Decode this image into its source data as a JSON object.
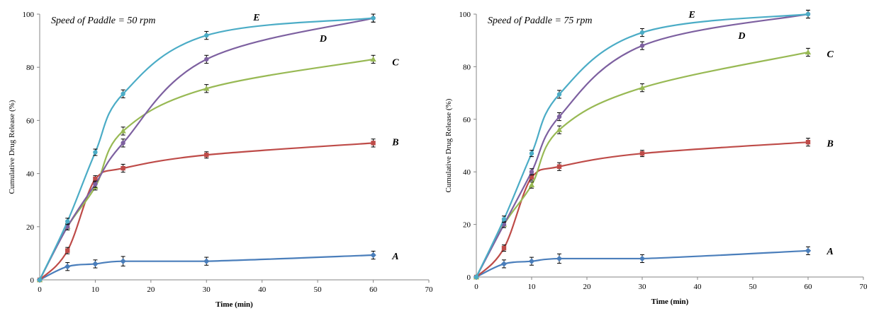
{
  "charts": [
    {
      "type": "line",
      "annotation": "Speed of Paddle = 50 rpm",
      "xlabel": "Time (min)",
      "ylabel": "Cumulative Drug Release (%)",
      "xlim": [
        0,
        70
      ],
      "ylim": [
        0,
        100
      ],
      "xticks": [
        0,
        10,
        20,
        30,
        40,
        50,
        60,
        70
      ],
      "yticks": [
        0,
        20,
        40,
        60,
        80,
        100
      ],
      "series": [
        {
          "label": "A",
          "color": "#4a7ebb",
          "marker": "diamond",
          "x": [
            0,
            5,
            10,
            15,
            30,
            60
          ],
          "y": [
            0,
            5,
            6,
            7,
            7,
            9.3
          ],
          "err": [
            0,
            1.5,
            1.5,
            1.8,
            1.5,
            1.5
          ],
          "label_at": [
            64,
            9
          ]
        },
        {
          "label": "B",
          "color": "#be4b48",
          "marker": "square",
          "x": [
            0,
            5,
            10,
            15,
            30,
            60
          ],
          "y": [
            0,
            11,
            38,
            42,
            47,
            51.5
          ],
          "err": [
            0,
            1.2,
            1.2,
            1.5,
            1.2,
            1.5
          ],
          "label_at": [
            64,
            52
          ]
        },
        {
          "label": "C",
          "color": "#98b954",
          "marker": "triangle",
          "x": [
            0,
            5,
            10,
            15,
            30,
            60
          ],
          "y": [
            0,
            20,
            35,
            56,
            72,
            83
          ],
          "err": [
            0,
            1.2,
            1.2,
            1.5,
            1.5,
            1.5
          ],
          "label_at": [
            64,
            82
          ]
        },
        {
          "label": "D",
          "color": "#7d60a0",
          "marker": "x",
          "x": [
            0,
            5,
            10,
            15,
            30,
            60
          ],
          "y": [
            0,
            20,
            36,
            51.5,
            83,
            98.5
          ],
          "err": [
            0,
            1.2,
            1.2,
            1.5,
            1.5,
            1.5
          ],
          "label_at": [
            51,
            91
          ]
        },
        {
          "label": "E",
          "color": "#4bacc6",
          "marker": "star",
          "x": [
            0,
            5,
            10,
            15,
            30,
            60
          ],
          "y": [
            0,
            22,
            48,
            70,
            92,
            98.5
          ],
          "err": [
            0,
            1.2,
            1.2,
            1.5,
            1.5,
            1.5
          ],
          "label_at": [
            39,
            99
          ]
        }
      ]
    },
    {
      "type": "line",
      "annotation": "Speed of Paddle = 75 rpm",
      "xlabel": "Time (min)",
      "ylabel": "Cumulative Drug Release (%)",
      "xlim": [
        0,
        70
      ],
      "ylim": [
        0,
        100
      ],
      "xticks": [
        0,
        10,
        20,
        30,
        40,
        50,
        60,
        70
      ],
      "yticks": [
        0,
        20,
        40,
        60,
        80,
        100
      ],
      "series": [
        {
          "label": "A",
          "color": "#4a7ebb",
          "marker": "diamond",
          "x": [
            0,
            5,
            10,
            15,
            30,
            60
          ],
          "y": [
            0,
            5,
            6,
            7,
            7,
            10
          ],
          "err": [
            0,
            1.5,
            1.5,
            1.8,
            1.5,
            1.5
          ],
          "label_at": [
            64,
            10
          ]
        },
        {
          "label": "B",
          "color": "#be4b48",
          "marker": "square",
          "x": [
            0,
            5,
            10,
            15,
            30,
            60
          ],
          "y": [
            0,
            11,
            38,
            42,
            47,
            51.3
          ],
          "err": [
            0,
            1.2,
            1.2,
            1.5,
            1.2,
            1.5
          ],
          "label_at": [
            64,
            51
          ]
        },
        {
          "label": "C",
          "color": "#98b954",
          "marker": "triangle",
          "x": [
            0,
            5,
            10,
            15,
            30,
            60
          ],
          "y": [
            0,
            20,
            35,
            56,
            72,
            85.5
          ],
          "err": [
            0,
            1.2,
            1.2,
            1.5,
            1.5,
            1.5
          ],
          "label_at": [
            64,
            85
          ]
        },
        {
          "label": "D",
          "color": "#7d60a0",
          "marker": "x",
          "x": [
            0,
            5,
            10,
            15,
            30,
            60
          ],
          "y": [
            0,
            20,
            40,
            61,
            88,
            100
          ],
          "err": [
            0,
            1.2,
            1.2,
            1.5,
            1.5,
            1.5
          ],
          "label_at": [
            48,
            92
          ]
        },
        {
          "label": "E",
          "color": "#4bacc6",
          "marker": "star",
          "x": [
            0,
            5,
            10,
            15,
            30,
            60
          ],
          "y": [
            0,
            22,
            47,
            69.5,
            93,
            100
          ],
          "err": [
            0,
            1.2,
            1.2,
            1.5,
            1.5,
            1.5
          ],
          "label_at": [
            39,
            100
          ]
        }
      ]
    }
  ]
}
